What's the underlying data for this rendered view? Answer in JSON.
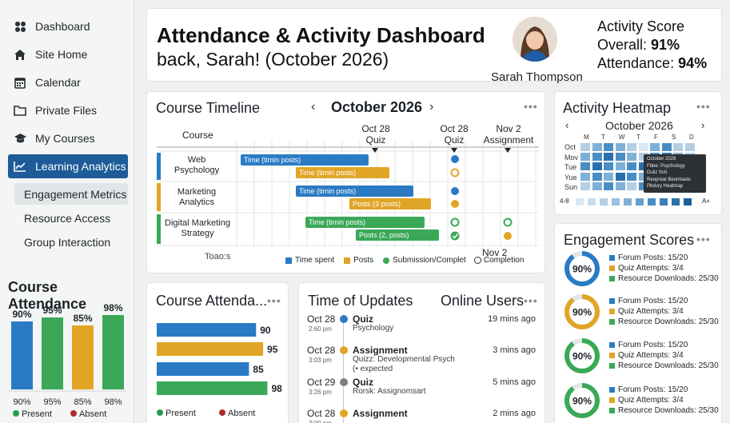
{
  "sidebar": {
    "items": [
      {
        "label": "Dashboard",
        "icon": "dashboard-icon"
      },
      {
        "label": "Site Home",
        "icon": "home-icon"
      },
      {
        "label": "Calendar",
        "icon": "calendar-icon"
      },
      {
        "label": "Private Files",
        "icon": "folder-icon"
      },
      {
        "label": "My Courses",
        "icon": "graduation-cap-icon"
      },
      {
        "label": "Learning Analytics",
        "icon": "line-chart-icon",
        "active": true
      }
    ],
    "sub_items": [
      {
        "label": "Engagement Metrics",
        "active": true
      },
      {
        "label": "Resource Access"
      },
      {
        "label": "Group Interaction"
      }
    ],
    "attendance": {
      "title": "Course Attendance",
      "values": [
        90,
        95,
        85,
        98
      ],
      "top_labels": [
        "90%",
        "95%",
        "85%",
        "98%"
      ],
      "bottom_labels": [
        "90%",
        "95%",
        "85%",
        "98%"
      ],
      "colors": [
        "#2a7bc4",
        "#3aa857",
        "#e1a526",
        "#3aa857"
      ],
      "legend": [
        {
          "label": "Present",
          "color": "#2b9a4b"
        },
        {
          "label": "Absent",
          "color": "#b12a2a"
        }
      ]
    }
  },
  "header": {
    "title": "Attendance & Activity Dashboard",
    "subtitle": "back, Sarah! (October 2026)",
    "user_name": "Sarah Thompson",
    "score_title": "Activity Score",
    "overall_label": "Overall: ",
    "overall_value": "91%",
    "attendance_label": "Attendance: ",
    "attendance_value": "94%"
  },
  "timeline": {
    "title": "Course Timeline",
    "month": "October 2026",
    "col_course": "Course",
    "markers": [
      {
        "date": "Oct 28",
        "label": "Quiz"
      },
      {
        "date": "Oct 28",
        "label": "Quiz"
      },
      {
        "date": "Nov 2",
        "label": "Assignment"
      },
      {
        "date": "Nov 2",
        "label": "Completion"
      }
    ],
    "courses": [
      {
        "name_line1": "Web",
        "name_line2": "Psychology",
        "color": "#2a7bc4",
        "bars": [
          {
            "label": "Time (timin posts)",
            "color": "#2a7bc4"
          },
          {
            "label": "Time (timin posts)",
            "color": "#e1a526"
          }
        ]
      },
      {
        "name_line1": "Marketing",
        "name_line2": "Analytics",
        "color": "#e1a526",
        "bars": [
          {
            "label": "Time (timin posts)",
            "color": "#2a7bc4"
          },
          {
            "label": "Posts (3 posts)",
            "color": "#e1a526"
          }
        ]
      },
      {
        "name_line1": "Digital Marketing",
        "name_line2": "Strategy",
        "color": "#3aa857",
        "bars": [
          {
            "label": "Time (timin posts)",
            "color": "#3aa857"
          },
          {
            "label": "Posts (2, posts)",
            "color": "#3aa857"
          }
        ]
      }
    ],
    "footer_left": "Toao:s",
    "legend": [
      {
        "label": "Time spent",
        "color": "#2a7bc4"
      },
      {
        "label": "Posts",
        "color": "#e1a526"
      },
      {
        "label": "Submission/Complet",
        "color": "#3aa857"
      }
    ]
  },
  "heatmap": {
    "title": "Activity Heatmap",
    "month": "October 2026",
    "days": [
      "M",
      "T",
      "W",
      "T",
      "F",
      "S",
      "D"
    ],
    "rows": [
      "Oct",
      "Mov",
      "Tue",
      "Yue",
      "Sun"
    ],
    "tooltip": [
      "October 2026",
      "Fbbe: Psychology",
      "Duiiz Sch",
      "Reopreat Beonloads",
      "Pbdury Heatmap"
    ],
    "scale_low": "4-8",
    "scale_high": "A+"
  },
  "engagement": {
    "title": "Engagement Scores",
    "items": [
      {
        "pct": "90%",
        "color": "#2a7bc4",
        "stats": [
          "Forum Posts: 15/20",
          "Quiz Attempts: 3/4",
          "Resource Downloads: 25/30"
        ]
      },
      {
        "pct": "90%",
        "color": "#e1a526",
        "stats": [
          "Forum Posts: 15/20",
          "Quiz Attempts: 3/4",
          "Resource Downloads: 25/30"
        ]
      },
      {
        "pct": "90%",
        "color": "#3aa857",
        "stats": [
          "Forum Posts: 15/20",
          "Quiz Attempts: 3/4",
          "Resource Downloads: 25/30"
        ]
      },
      {
        "pct": "90%",
        "color": "#3aa857",
        "stats": [
          "Forum Posts: 15/20",
          "Quiz Attempts: 3/4",
          "Resource Downloads: 25/30"
        ]
      }
    ],
    "stat_colors": [
      "#2a7bc4",
      "#e1a526",
      "#3aa857"
    ]
  },
  "course_attendance": {
    "title": "Course Attenda...",
    "values": [
      90,
      95,
      85,
      98
    ],
    "labels": [
      "90",
      "95",
      "85",
      "98"
    ],
    "colors": [
      "#2a7bc4",
      "#e1a526",
      "#2a7bc4",
      "#3aa857"
    ],
    "legend": [
      {
        "label": "Present",
        "color": "#2b9a4b"
      },
      {
        "label": "Absent",
        "color": "#b12a2a"
      }
    ]
  },
  "updates": {
    "title": "Time of Updates",
    "title2": "Online Users",
    "items": [
      {
        "date": "Oct 28",
        "time": "2:60 pm",
        "color": "#2a7bc4",
        "title": "Quiz",
        "desc": "Psychology",
        "ago": "19 mins ago"
      },
      {
        "date": "Oct 28",
        "time": "3:03 pm",
        "color": "#e1a526",
        "title": "Assignment",
        "desc": "Quizz: Developmental Psych",
        "desc2": "(• expected",
        "ago": "3 mins ago"
      },
      {
        "date": "Oct 29",
        "time": "3:26 pm",
        "color": "#7a8086",
        "title": "Quiz",
        "desc": "Rorsk: Assignomsart",
        "ago": "5 mins ago"
      },
      {
        "date": "Oct 28",
        "time": "3:00 pm",
        "color": "#e1a526",
        "title": "Assignment",
        "desc": "",
        "ago": "2 mins ago"
      }
    ]
  }
}
